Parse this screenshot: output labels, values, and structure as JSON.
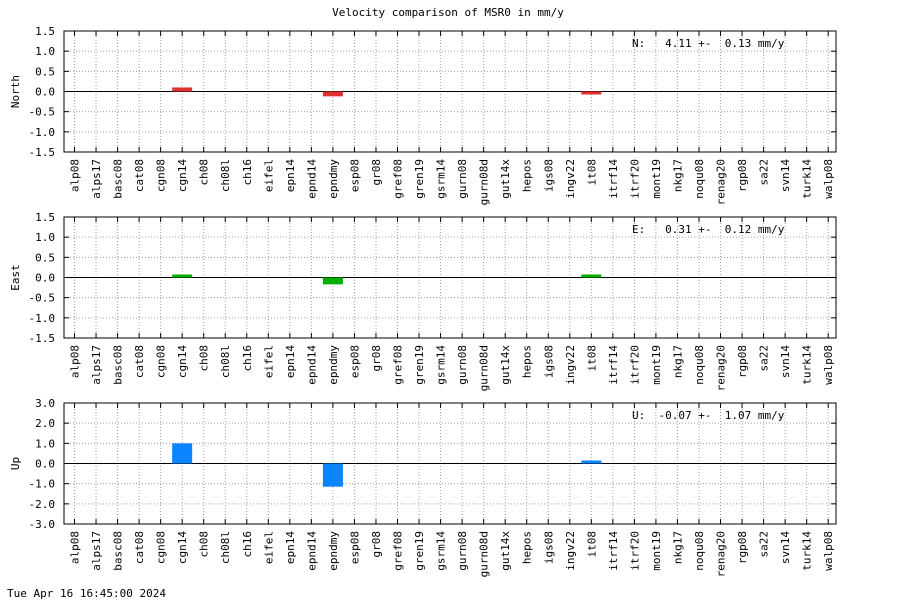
{
  "title": "Velocity comparison of MSR0 in mm/y",
  "timestamp": "Tue Apr 16 16:45:00 2024",
  "chart_data": [
    {
      "type": "bar",
      "ylabel": "North",
      "ylim": [
        -1.5,
        1.5
      ],
      "yticks": [
        "1.5",
        "1.0",
        "0.5",
        "0.0",
        "-0.5",
        "-1.0",
        "-1.5"
      ],
      "annotation": "N:   4.11 +-  0.13 mm/y",
      "color": "#e03030",
      "grid": true,
      "categories": [
        "alp08",
        "alps17",
        "basc08",
        "cat08",
        "cgn08",
        "cgn14",
        "ch08",
        "ch08l",
        "ch16",
        "eifel",
        "epn14",
        "epnd14",
        "epndmy",
        "esp08",
        "gr08",
        "gref08",
        "gren19",
        "gsrm14",
        "gurn08",
        "gurn08d",
        "gut14x",
        "hepos",
        "igs08",
        "ingv22",
        "it08",
        "itrf14",
        "itrf20",
        "mont19",
        "nkg17",
        "noqu08",
        "renag20",
        "rgp08",
        "sa22",
        "svn14",
        "turk14",
        "walp08"
      ],
      "values": [
        0,
        0,
        0,
        0,
        0,
        0.1,
        0,
        0,
        0,
        0,
        0,
        0,
        -0.12,
        0,
        0,
        0,
        0,
        0,
        0,
        0,
        0,
        0,
        0,
        0,
        -0.03,
        0,
        0,
        0,
        0,
        0,
        0,
        0,
        0,
        0,
        0,
        0
      ]
    },
    {
      "type": "bar",
      "ylabel": "East",
      "ylim": [
        -1.5,
        1.5
      ],
      "yticks": [
        "1.5",
        "1.0",
        "0.5",
        "0.0",
        "-0.5",
        "-1.0",
        "-1.5"
      ],
      "annotation": "E:   0.31 +-  0.12 mm/y",
      "color": "#00b000",
      "grid": true,
      "categories": [
        "alp08",
        "alps17",
        "basc08",
        "cat08",
        "cgn08",
        "cgn14",
        "ch08",
        "ch08l",
        "ch16",
        "eifel",
        "epn14",
        "epnd14",
        "epndmy",
        "esp08",
        "gr08",
        "gref08",
        "gren19",
        "gsrm14",
        "gurn08",
        "gurn08d",
        "gut14x",
        "hepos",
        "igs08",
        "ingv22",
        "it08",
        "itrf14",
        "itrf20",
        "mont19",
        "nkg17",
        "noqu08",
        "renag20",
        "rgp08",
        "sa22",
        "svn14",
        "turk14",
        "walp08"
      ],
      "values": [
        0,
        0,
        0,
        0,
        0,
        0.02,
        0,
        0,
        0,
        0,
        0,
        0,
        -0.17,
        0,
        0,
        0,
        0,
        0,
        0,
        0,
        0,
        0,
        0,
        0,
        0.07,
        0,
        0,
        0,
        0,
        0,
        0,
        0,
        0,
        0,
        0,
        0
      ]
    },
    {
      "type": "bar",
      "ylabel": "Up",
      "ylim": [
        -3.0,
        3.0
      ],
      "yticks": [
        "3.0",
        "2.0",
        "1.0",
        "0.0",
        "-1.0",
        "-2.0",
        "-3.0"
      ],
      "annotation": "U:  -0.07 +-  1.07 mm/y",
      "color": "#0a84ff",
      "grid": true,
      "categories": [
        "alp08",
        "alps17",
        "basc08",
        "cat08",
        "cgn08",
        "cgn14",
        "ch08",
        "ch08l",
        "ch16",
        "eifel",
        "epn14",
        "epnd14",
        "epndmy",
        "esp08",
        "gr08",
        "gref08",
        "gren19",
        "gsrm14",
        "gurn08",
        "gurn08d",
        "gut14x",
        "hepos",
        "igs08",
        "ingv22",
        "it08",
        "itrf14",
        "itrf20",
        "mont19",
        "nkg17",
        "noqu08",
        "renag20",
        "rgp08",
        "sa22",
        "svn14",
        "turk14",
        "walp08"
      ],
      "values": [
        0,
        0,
        0,
        0,
        0,
        1.0,
        0,
        0,
        0,
        0,
        0,
        0,
        -1.15,
        0,
        0,
        0,
        0,
        0,
        0,
        0,
        0,
        0,
        0,
        0,
        0.15,
        0,
        0,
        0,
        0,
        0,
        0,
        0,
        0,
        0,
        0,
        0
      ]
    }
  ]
}
